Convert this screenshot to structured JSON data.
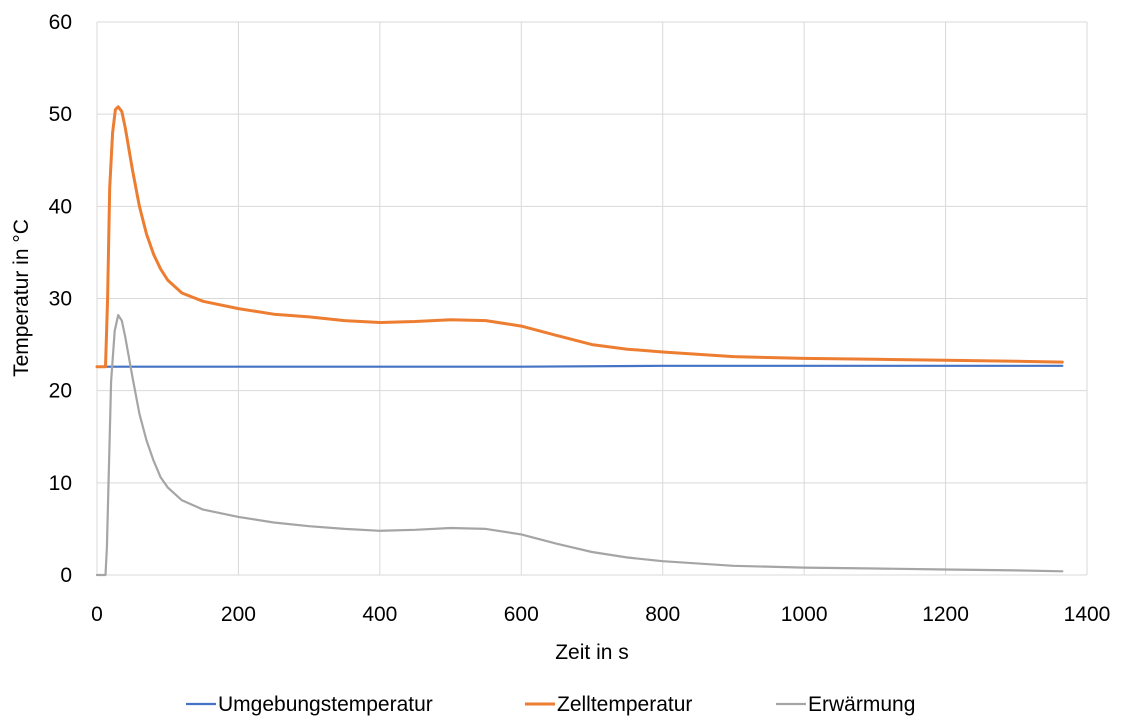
{
  "chart_data": {
    "type": "line",
    "title": "",
    "xlabel": "Zeit in s",
    "ylabel": "Temperatur in °C",
    "xlim": [
      0,
      1400
    ],
    "ylim": [
      0,
      60
    ],
    "x_ticks": [
      "0",
      "200",
      "400",
      "600",
      "800",
      "1000",
      "1200",
      "1400"
    ],
    "y_ticks": [
      "0",
      "10",
      "20",
      "30",
      "40",
      "50",
      "60"
    ],
    "grid": true,
    "legend_position": "bottom",
    "series": [
      {
        "name": "Umgebungstemperatur",
        "color": "#4472c4",
        "x": [
          0,
          200,
          400,
          600,
          800,
          1000,
          1200,
          1365
        ],
        "y": [
          22.6,
          22.6,
          22.6,
          22.6,
          22.7,
          22.7,
          22.7,
          22.7
        ]
      },
      {
        "name": "Zelltemperatur",
        "color": "#ed7d31",
        "x": [
          0,
          12,
          15,
          18,
          22,
          26,
          30,
          35,
          40,
          50,
          60,
          70,
          80,
          90,
          100,
          120,
          150,
          200,
          250,
          300,
          350,
          400,
          450,
          500,
          550,
          600,
          650,
          700,
          750,
          800,
          900,
          1000,
          1100,
          1200,
          1300,
          1365
        ],
        "y": [
          22.6,
          22.6,
          30,
          42,
          48,
          50.5,
          50.8,
          50.3,
          48.5,
          44,
          40,
          37,
          34.8,
          33.2,
          32,
          30.6,
          29.7,
          28.9,
          28.3,
          28,
          27.6,
          27.4,
          27.5,
          27.7,
          27.6,
          27.0,
          26.0,
          25.0,
          24.5,
          24.2,
          23.7,
          23.5,
          23.4,
          23.3,
          23.2,
          23.1
        ]
      },
      {
        "name": "Erwärmung",
        "color": "#a5a5a5",
        "x": [
          0,
          12,
          14,
          17,
          20,
          25,
          30,
          35,
          40,
          50,
          60,
          70,
          80,
          90,
          100,
          120,
          150,
          200,
          250,
          300,
          350,
          400,
          450,
          500,
          550,
          600,
          650,
          700,
          750,
          800,
          900,
          1000,
          1100,
          1200,
          1300,
          1365
        ],
        "y": [
          0,
          0,
          3,
          12,
          21,
          26.5,
          28.2,
          27.6,
          25.8,
          21.5,
          17.5,
          14.6,
          12.4,
          10.6,
          9.5,
          8.1,
          7.1,
          6.3,
          5.7,
          5.3,
          5.0,
          4.8,
          4.9,
          5.1,
          5.0,
          4.4,
          3.4,
          2.5,
          1.9,
          1.5,
          1.0,
          0.8,
          0.7,
          0.6,
          0.5,
          0.4
        ]
      }
    ]
  }
}
